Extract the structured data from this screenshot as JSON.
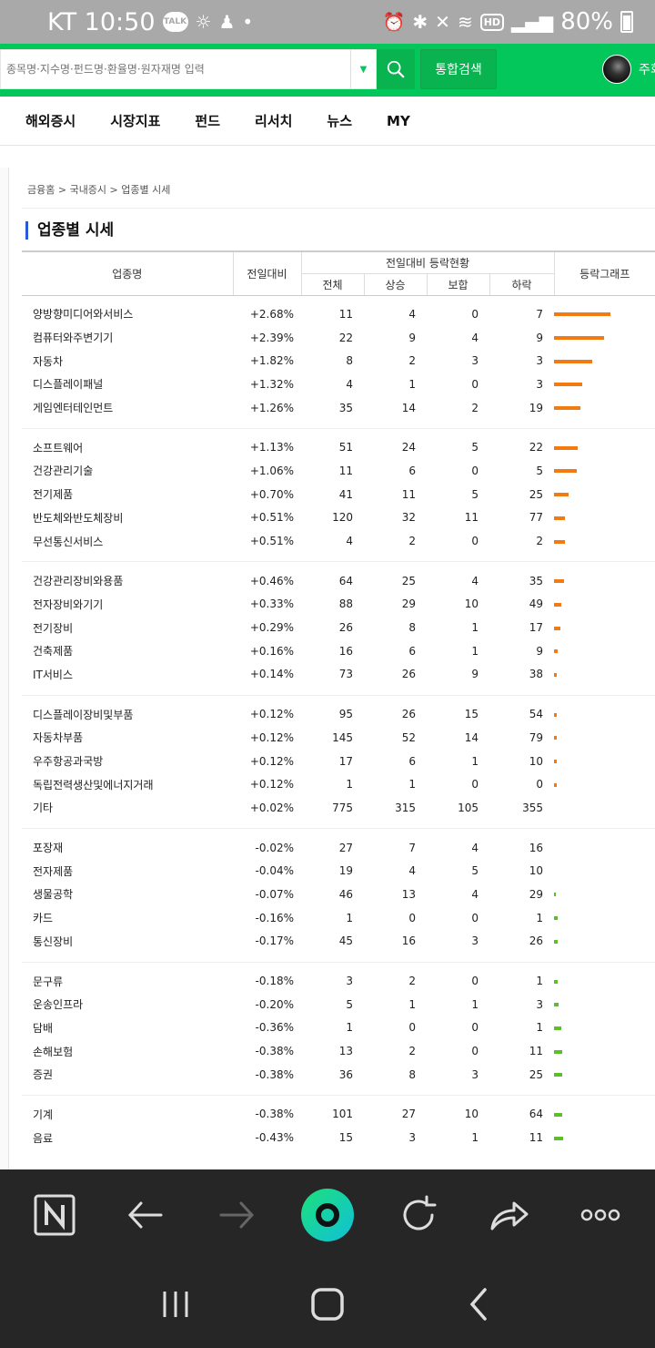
{
  "status": {
    "carrier_time": "KT 10:50",
    "battery": "80%",
    "talk_badge": "TALK",
    "hd_badge": "HD"
  },
  "header": {
    "search_placeholder": "종목명·지수명·펀드명·환율명·원자재명 입력",
    "total_search_label": "통합검색",
    "user_name_partial": "주회"
  },
  "nav": [
    "해외증시",
    "시장지표",
    "펀드",
    "리서치",
    "뉴스",
    "MY"
  ],
  "breadcrumb": "금융홈 > 국내증시 > 업종별 시세",
  "page_title": "업종별 시세",
  "table": {
    "headers": {
      "name": "업종명",
      "change": "전일대비",
      "group": "전일대비 등락현황",
      "total": "전체",
      "rise": "상승",
      "flat": "보합",
      "fall": "하락",
      "graph": "등락그래프"
    },
    "groups": [
      [
        {
          "name": "양방향미디어와서비스",
          "change": "+2.68%",
          "total": "11",
          "rise": "4",
          "flat": "0",
          "fall": "7",
          "dir": "up",
          "bar": 2.68
        },
        {
          "name": "컴퓨터와주변기기",
          "change": "+2.39%",
          "total": "22",
          "rise": "9",
          "flat": "4",
          "fall": "9",
          "dir": "up",
          "bar": 2.39
        },
        {
          "name": "자동차",
          "change": "+1.82%",
          "total": "8",
          "rise": "2",
          "flat": "3",
          "fall": "3",
          "dir": "up",
          "bar": 1.82
        },
        {
          "name": "디스플레이패널",
          "change": "+1.32%",
          "total": "4",
          "rise": "1",
          "flat": "0",
          "fall": "3",
          "dir": "up",
          "bar": 1.32
        },
        {
          "name": "게임엔터테인먼트",
          "change": "+1.26%",
          "total": "35",
          "rise": "14",
          "flat": "2",
          "fall": "19",
          "dir": "up",
          "bar": 1.26
        }
      ],
      [
        {
          "name": "소프트웨어",
          "change": "+1.13%",
          "total": "51",
          "rise": "24",
          "flat": "5",
          "fall": "22",
          "dir": "up",
          "bar": 1.13
        },
        {
          "name": "건강관리기술",
          "change": "+1.06%",
          "total": "11",
          "rise": "6",
          "flat": "0",
          "fall": "5",
          "dir": "up",
          "bar": 1.06
        },
        {
          "name": "전기제품",
          "change": "+0.70%",
          "total": "41",
          "rise": "11",
          "flat": "5",
          "fall": "25",
          "dir": "up",
          "bar": 0.7
        },
        {
          "name": "반도체와반도체장비",
          "change": "+0.51%",
          "total": "120",
          "rise": "32",
          "flat": "11",
          "fall": "77",
          "dir": "up",
          "bar": 0.51
        },
        {
          "name": "무선통신서비스",
          "change": "+0.51%",
          "total": "4",
          "rise": "2",
          "flat": "0",
          "fall": "2",
          "dir": "up",
          "bar": 0.51
        }
      ],
      [
        {
          "name": "건강관리장비와용품",
          "change": "+0.46%",
          "total": "64",
          "rise": "25",
          "flat": "4",
          "fall": "35",
          "dir": "up",
          "bar": 0.46
        },
        {
          "name": "전자장비와기기",
          "change": "+0.33%",
          "total": "88",
          "rise": "29",
          "flat": "10",
          "fall": "49",
          "dir": "up",
          "bar": 0.33
        },
        {
          "name": "전기장비",
          "change": "+0.29%",
          "total": "26",
          "rise": "8",
          "flat": "1",
          "fall": "17",
          "dir": "up",
          "bar": 0.29
        },
        {
          "name": "건축제품",
          "change": "+0.16%",
          "total": "16",
          "rise": "6",
          "flat": "1",
          "fall": "9",
          "dir": "up",
          "bar": 0.16
        },
        {
          "name": "IT서비스",
          "change": "+0.14%",
          "total": "73",
          "rise": "26",
          "flat": "9",
          "fall": "38",
          "dir": "up",
          "bar": 0.14
        }
      ],
      [
        {
          "name": "디스플레이장비및부품",
          "change": "+0.12%",
          "total": "95",
          "rise": "26",
          "flat": "15",
          "fall": "54",
          "dir": "up",
          "bar": 0.12
        },
        {
          "name": "자동차부품",
          "change": "+0.12%",
          "total": "145",
          "rise": "52",
          "flat": "14",
          "fall": "79",
          "dir": "up",
          "bar": 0.12
        },
        {
          "name": "우주항공과국방",
          "change": "+0.12%",
          "total": "17",
          "rise": "6",
          "flat": "1",
          "fall": "10",
          "dir": "up",
          "bar": 0.12
        },
        {
          "name": "독립전력생산및에너지거래",
          "change": "+0.12%",
          "total": "1",
          "rise": "1",
          "flat": "0",
          "fall": "0",
          "dir": "up",
          "bar": 0.12
        },
        {
          "name": "기타",
          "change": "+0.02%",
          "total": "775",
          "rise": "315",
          "flat": "105",
          "fall": "355",
          "dir": "up",
          "bar": 0
        }
      ],
      [
        {
          "name": "포장재",
          "change": "-0.02%",
          "total": "27",
          "rise": "7",
          "flat": "4",
          "fall": "16",
          "dir": "dn",
          "bar": 0
        },
        {
          "name": "전자제품",
          "change": "-0.04%",
          "total": "19",
          "rise": "4",
          "flat": "5",
          "fall": "10",
          "dir": "dn",
          "bar": 0
        },
        {
          "name": "생물공학",
          "change": "-0.07%",
          "total": "46",
          "rise": "13",
          "flat": "4",
          "fall": "29",
          "dir": "dn",
          "bar": 0.07
        },
        {
          "name": "카드",
          "change": "-0.16%",
          "total": "1",
          "rise": "0",
          "flat": "0",
          "fall": "1",
          "dir": "dn",
          "bar": 0.16
        },
        {
          "name": "통신장비",
          "change": "-0.17%",
          "total": "45",
          "rise": "16",
          "flat": "3",
          "fall": "26",
          "dir": "dn",
          "bar": 0.17
        }
      ],
      [
        {
          "name": "문구류",
          "change": "-0.18%",
          "total": "3",
          "rise": "2",
          "flat": "0",
          "fall": "1",
          "dir": "dn",
          "bar": 0.18
        },
        {
          "name": "운송인프라",
          "change": "-0.20%",
          "total": "5",
          "rise": "1",
          "flat": "1",
          "fall": "3",
          "dir": "dn",
          "bar": 0.2
        },
        {
          "name": "담배",
          "change": "-0.36%",
          "total": "1",
          "rise": "0",
          "flat": "0",
          "fall": "1",
          "dir": "dn",
          "bar": 0.36
        },
        {
          "name": "손해보험",
          "change": "-0.38%",
          "total": "13",
          "rise": "2",
          "flat": "0",
          "fall": "11",
          "dir": "dn",
          "bar": 0.38
        },
        {
          "name": "증권",
          "change": "-0.38%",
          "total": "36",
          "rise": "8",
          "flat": "3",
          "fall": "25",
          "dir": "dn",
          "bar": 0.38
        }
      ],
      [
        {
          "name": "기계",
          "change": "-0.38%",
          "total": "101",
          "rise": "27",
          "flat": "10",
          "fall": "64",
          "dir": "dn",
          "bar": 0.38
        },
        {
          "name": "음료",
          "change": "-0.43%",
          "total": "15",
          "rise": "3",
          "flat": "1",
          "fall": "11",
          "dir": "dn",
          "bar": 0.43
        }
      ]
    ]
  },
  "colors": {
    "brand_green": "#03c75a",
    "up_red": "#d60000",
    "down_blue": "#2a62c4",
    "bar_orange": "#f27a10",
    "bar_green": "#5cbf2a"
  },
  "browser_bar_icons": [
    "naver-n-icon",
    "back-arrow-icon",
    "forward-arrow-icon",
    "home-ring-icon",
    "refresh-icon",
    "share-icon",
    "more-icon"
  ],
  "system_nav_icons": [
    "recent-apps-icon",
    "home-icon",
    "back-icon"
  ]
}
